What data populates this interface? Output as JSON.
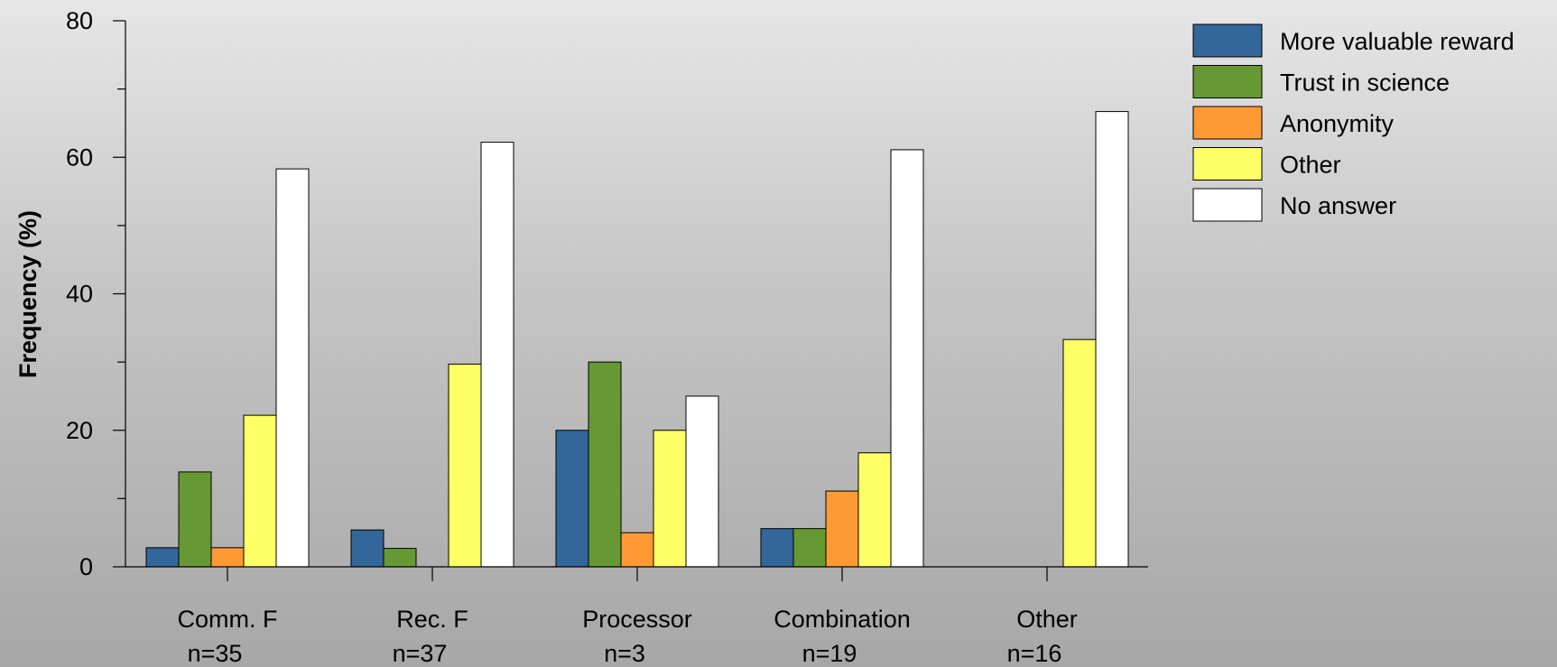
{
  "chart_data": {
    "type": "bar",
    "title": "",
    "xlabel": "",
    "ylabel": "Frequency (%)",
    "ylim": [
      0,
      80
    ],
    "yticks": [
      0,
      20,
      40,
      60,
      80
    ],
    "categories": [
      "Comm. F",
      "Rec. F",
      "Processor",
      "Combination",
      "Other"
    ],
    "category_counts": [
      "n=35",
      "n=37",
      "n=3",
      "n=19",
      "n=16"
    ],
    "series": [
      {
        "name": "More valuable reward",
        "color": "#336699",
        "values": [
          2.8,
          5.4,
          20,
          5.6,
          0
        ]
      },
      {
        "name": "Trust in science",
        "color": "#669933",
        "values": [
          13.9,
          2.7,
          30,
          5.6,
          0
        ]
      },
      {
        "name": "Anonymity",
        "color": "#ff9933",
        "values": [
          2.8,
          0,
          5,
          11.1,
          0
        ]
      },
      {
        "name": "Other",
        "color": "#ffff66",
        "values": [
          22.2,
          29.7,
          20,
          16.7,
          33.3
        ]
      },
      {
        "name": "No answer",
        "color": "#ffffff",
        "values": [
          58.3,
          62.2,
          25,
          61.1,
          66.7
        ]
      }
    ],
    "grid": false,
    "legend_position": "top-right"
  }
}
